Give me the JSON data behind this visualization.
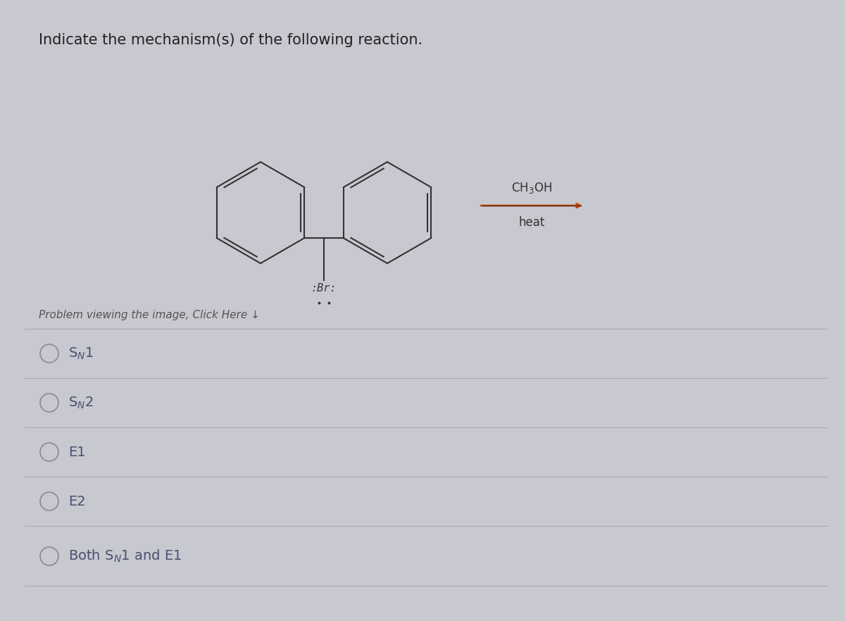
{
  "title": "Indicate the mechanism(s) of the following reaction.",
  "background_color": "#c8c8d0",
  "panel_color": "#d4d4dc",
  "reagent_top": "CH₃OH",
  "reagent_bottom": "heat",
  "br_label": ":Br:",
  "options": [
    "S$_{N}$1",
    "S$_{N}$2",
    "E1",
    "E2",
    "Both S$_{N}$1 and E1"
  ],
  "option_text_color": "#4a5070",
  "title_color": "#222222",
  "line_color": "#aaaaaa",
  "circle_color": "#888899",
  "structure_color": "#333333",
  "arrow_color": "#cc4400",
  "problem_text": "Problem viewing the image, Click Here ↓"
}
